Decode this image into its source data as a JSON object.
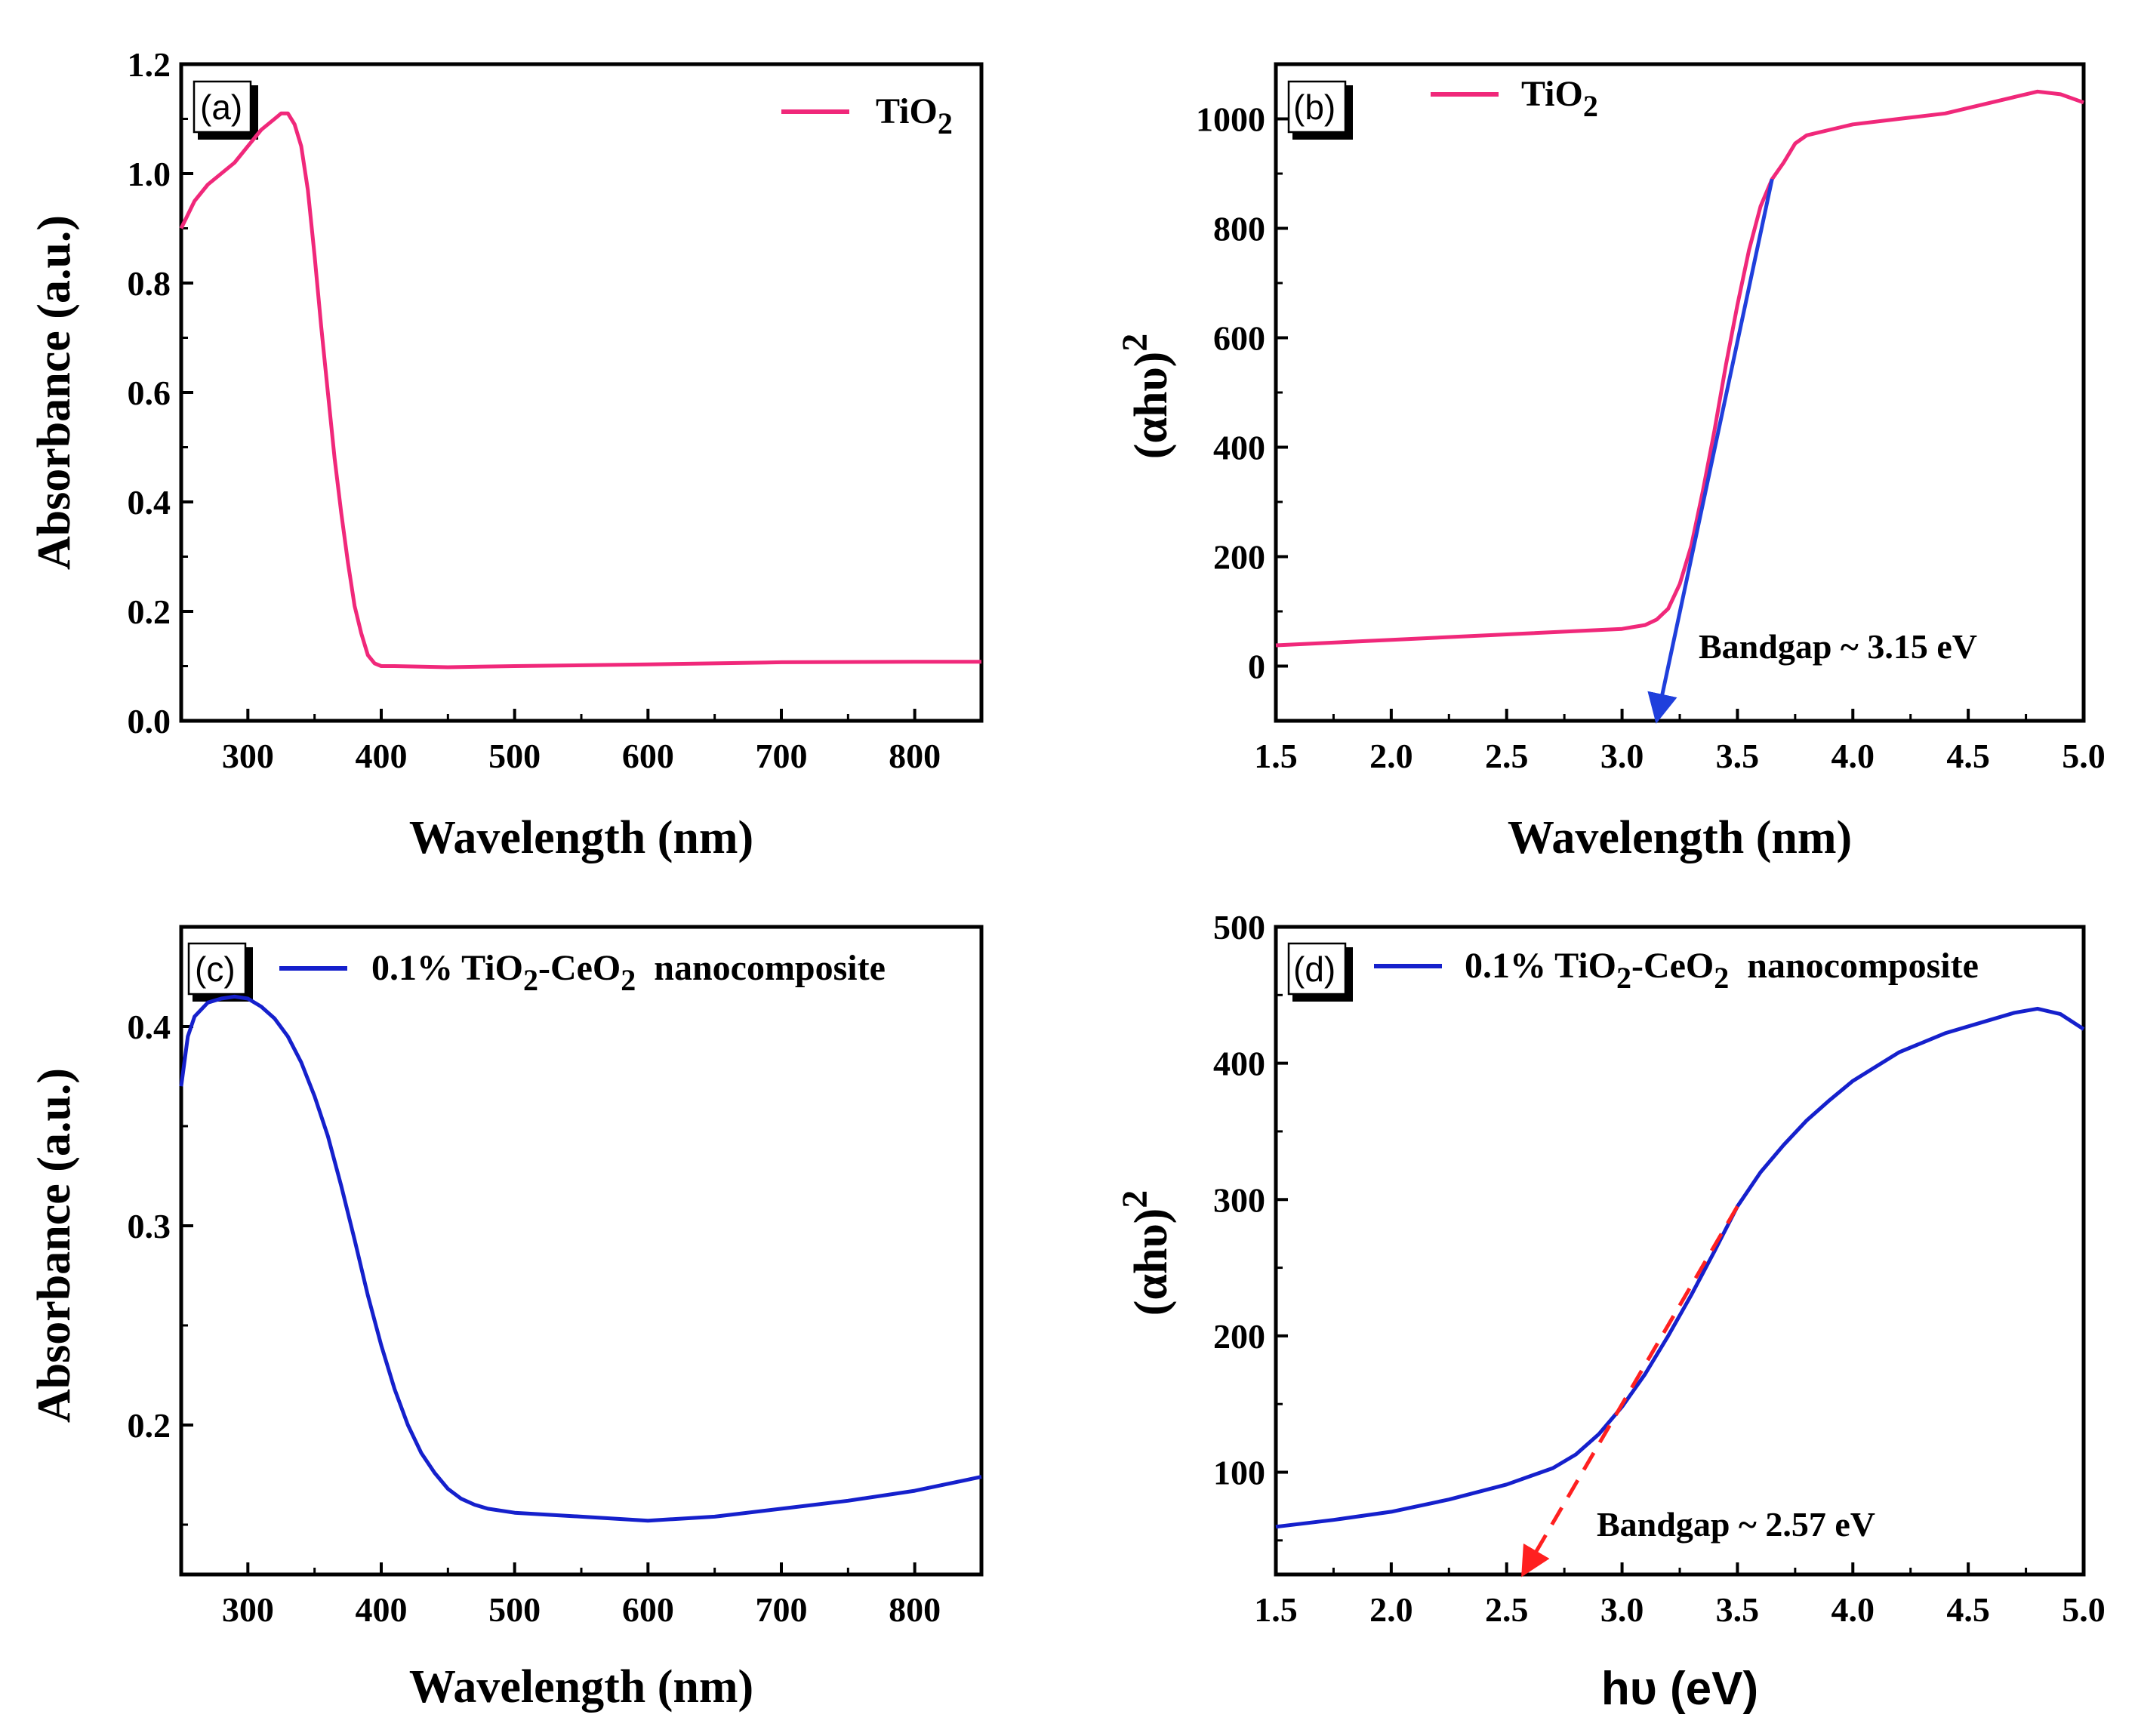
{
  "chart_data": [
    {
      "panel": "(a)",
      "type": "line",
      "xlabel": "Wavelength (nm)",
      "ylabel": "Absorbance (a.u.)",
      "xlim": [
        250,
        850
      ],
      "ylim": [
        0.0,
        1.2
      ],
      "xticks": [
        300,
        400,
        500,
        600,
        700,
        800
      ],
      "xtick_labels": [
        "300",
        "400",
        "500",
        "600",
        "700",
        "800"
      ],
      "yticks": [
        0.0,
        0.2,
        0.4,
        0.6,
        0.8,
        1.0,
        1.2
      ],
      "ytick_labels": [
        "0.0",
        "0.2",
        "0.4",
        "0.6",
        "0.8",
        "1.0",
        "1.2"
      ],
      "legend_position": "top-right",
      "series": [
        {
          "name": "TiO2",
          "legend_main": "TiO",
          "legend_sub": "2",
          "color": "#f0287a",
          "x": [
            250,
            260,
            270,
            280,
            290,
            300,
            310,
            320,
            325,
            330,
            335,
            340,
            345,
            350,
            355,
            360,
            365,
            370,
            375,
            380,
            385,
            390,
            395,
            400,
            410,
            450,
            500,
            600,
            700,
            800,
            850
          ],
          "y": [
            0.9,
            0.95,
            0.98,
            1.0,
            1.02,
            1.05,
            1.08,
            1.1,
            1.11,
            1.11,
            1.09,
            1.05,
            0.97,
            0.85,
            0.72,
            0.6,
            0.48,
            0.38,
            0.29,
            0.21,
            0.16,
            0.12,
            0.105,
            0.1,
            0.1,
            0.098,
            0.1,
            0.103,
            0.107,
            0.108,
            0.108
          ]
        }
      ]
    },
    {
      "panel": "(b)",
      "type": "line",
      "xlabel": "Wavelength (nm)",
      "ylabel_main": "(αhυ)",
      "ylabel_sup": "2",
      "xlim": [
        1.5,
        5.0
      ],
      "ylim": [
        -100,
        1100
      ],
      "xticks": [
        1.5,
        2.0,
        2.5,
        3.0,
        3.5,
        4.0,
        4.5,
        5.0
      ],
      "xtick_labels": [
        "1.5",
        "2.0",
        "2.5",
        "3.0",
        "3.5",
        "4.0",
        "4.5",
        "5.0"
      ],
      "yticks": [
        0,
        200,
        400,
        600,
        800,
        1000
      ],
      "ytick_labels": [
        "0",
        "200",
        "400",
        "600",
        "800",
        "1000"
      ],
      "legend_position": "top-left",
      "annotation": "Bandgap ~ 3.15 eV",
      "tangent": {
        "color": "#1f3fdc",
        "x": [
          3.65,
          3.15
        ],
        "y": [
          890,
          -100
        ]
      },
      "series": [
        {
          "name": "TiO2",
          "legend_main": "TiO",
          "legend_sub": "2",
          "color": "#f0287a",
          "x": [
            1.5,
            2.0,
            2.5,
            3.0,
            3.1,
            3.15,
            3.2,
            3.25,
            3.3,
            3.35,
            3.4,
            3.45,
            3.5,
            3.55,
            3.6,
            3.65,
            3.7,
            3.75,
            3.8,
            3.9,
            4.0,
            4.2,
            4.4,
            4.6,
            4.8,
            4.9,
            5.0
          ],
          "y": [
            38,
            48,
            58,
            68,
            75,
            85,
            105,
            150,
            220,
            320,
            430,
            550,
            660,
            760,
            840,
            890,
            920,
            955,
            970,
            980,
            990,
            1000,
            1010,
            1030,
            1050,
            1045,
            1030
          ]
        }
      ]
    },
    {
      "panel": "(c)",
      "type": "line",
      "xlabel": "Wavelength (nm)",
      "ylabel": "Absorbance (a.u.)",
      "xlim": [
        250,
        850
      ],
      "ylim": [
        0.125,
        0.45
      ],
      "xticks": [
        300,
        400,
        500,
        600,
        700,
        800
      ],
      "xtick_labels": [
        "300",
        "400",
        "500",
        "600",
        "700",
        "800"
      ],
      "yticks": [
        0.2,
        0.3,
        0.4
      ],
      "ytick_labels": [
        "0.2",
        "0.3",
        "0.4"
      ],
      "legend_position": "top",
      "series": [
        {
          "name": "0.1% TiO2-CeO2 nanocomposite",
          "legend_parts": [
            "0.1% TiO",
            "2",
            "-CeO",
            "2",
            "  nanocomposite"
          ],
          "color": "#1520cc",
          "x": [
            250,
            255,
            260,
            270,
            280,
            290,
            300,
            310,
            320,
            330,
            340,
            350,
            360,
            370,
            380,
            390,
            400,
            410,
            420,
            430,
            440,
            450,
            460,
            470,
            480,
            500,
            550,
            600,
            650,
            700,
            750,
            800,
            850
          ],
          "y": [
            0.37,
            0.395,
            0.405,
            0.412,
            0.414,
            0.415,
            0.414,
            0.41,
            0.404,
            0.395,
            0.382,
            0.365,
            0.345,
            0.32,
            0.293,
            0.265,
            0.24,
            0.218,
            0.2,
            0.186,
            0.176,
            0.168,
            0.163,
            0.16,
            0.158,
            0.156,
            0.154,
            0.152,
            0.154,
            0.158,
            0.162,
            0.167,
            0.174
          ]
        }
      ]
    },
    {
      "panel": "(d)",
      "type": "line",
      "xlabel_main": "hυ (eV)",
      "ylabel_main": "(αhυ)",
      "ylabel_sup": "2",
      "xlim": [
        1.5,
        5.0
      ],
      "ylim": [
        25,
        500
      ],
      "xticks": [
        1.5,
        2.0,
        2.5,
        3.0,
        3.5,
        4.0,
        4.5,
        5.0
      ],
      "xtick_labels": [
        "1.5",
        "2.0",
        "2.5",
        "3.0",
        "3.5",
        "4.0",
        "4.5",
        "5.0"
      ],
      "yticks": [
        100,
        200,
        300,
        400,
        500
      ],
      "ytick_labels": [
        "100",
        "200",
        "300",
        "400",
        "500"
      ],
      "legend_position": "top",
      "annotation": "Bandgap ~ 2.57 eV",
      "tangent": {
        "color": "#ff2020",
        "x": [
          3.5,
          2.57
        ],
        "y": [
          295,
          25
        ]
      },
      "series": [
        {
          "name": "0.1% TiO2-CeO2 nanocomposite",
          "legend_parts": [
            "0.1% TiO",
            "2",
            "-CeO",
            "2",
            "  nanocomposite"
          ],
          "color": "#1520cc",
          "x": [
            1.5,
            1.75,
            2.0,
            2.25,
            2.5,
            2.7,
            2.8,
            2.9,
            3.0,
            3.1,
            3.2,
            3.3,
            3.4,
            3.5,
            3.6,
            3.7,
            3.8,
            3.9,
            4.0,
            4.2,
            4.4,
            4.6,
            4.7,
            4.8,
            4.9,
            5.0
          ],
          "y": [
            60,
            65,
            71,
            80,
            91,
            103,
            113,
            128,
            148,
            172,
            200,
            230,
            262,
            295,
            320,
            340,
            358,
            373,
            387,
            408,
            422,
            432,
            437,
            440,
            436,
            425
          ]
        }
      ]
    }
  ]
}
